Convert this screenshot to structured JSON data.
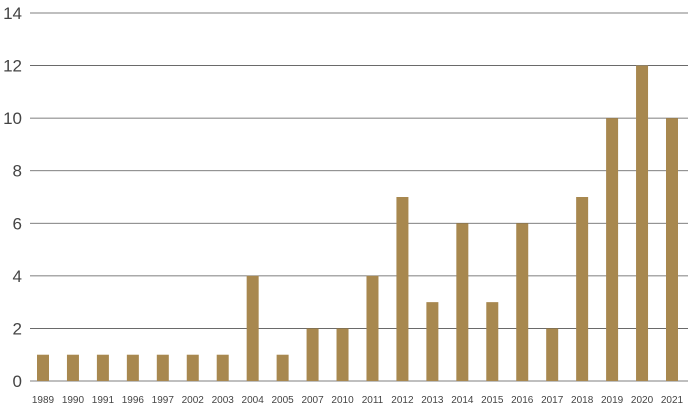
{
  "chart_data": {
    "type": "bar",
    "categories": [
      "1989",
      "1990",
      "1991",
      "1996",
      "1997",
      "2002",
      "2003",
      "2004",
      "2005",
      "2007",
      "2010",
      "2011",
      "2012",
      "2013",
      "2014",
      "2015",
      "2016",
      "2017",
      "2018",
      "2019",
      "2020",
      "2021"
    ],
    "values": [
      1,
      1,
      1,
      1,
      1,
      1,
      1,
      4,
      1,
      2,
      2,
      4,
      7,
      3,
      6,
      3,
      6,
      2,
      7,
      10,
      12,
      10
    ],
    "title": "",
    "xlabel": "",
    "ylabel": "",
    "ylim": [
      0,
      14
    ],
    "yticks": [
      0,
      2,
      4,
      6,
      8,
      10,
      12,
      14
    ],
    "grid": "horizontal",
    "legend": "none",
    "bar_color": "#a8884f"
  }
}
